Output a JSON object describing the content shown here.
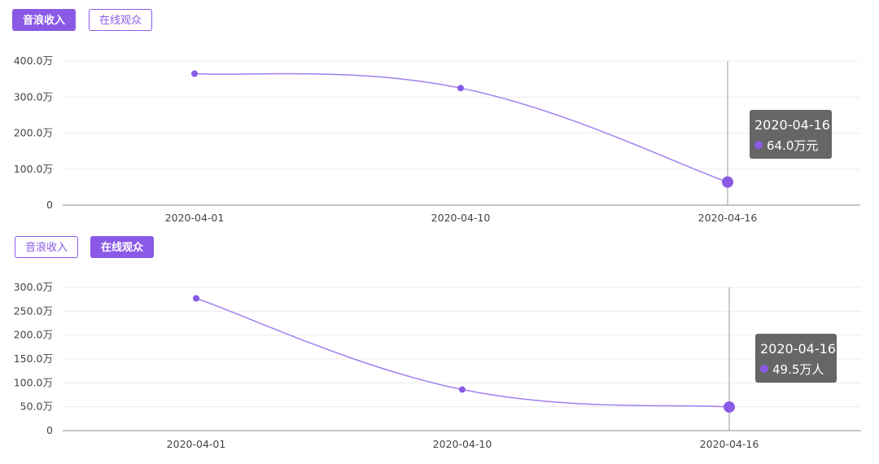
{
  "colors": {
    "accent": "#8a5ae6",
    "line": "#a27ff0",
    "grid": "#ececec",
    "axis": "#888888",
    "tooltip_bg": "#666666",
    "tooltip_text": "#ffffff"
  },
  "panels": [
    {
      "tabs": [
        {
          "label": "音浪收入",
          "active": true
        },
        {
          "label": "在线观众",
          "active": false
        }
      ],
      "tooltip": {
        "date": "2020-04-16",
        "value": "64.0万元"
      }
    },
    {
      "tabs": [
        {
          "label": "音浪收入",
          "active": false
        },
        {
          "label": "在线观众",
          "active": true
        }
      ],
      "tooltip": {
        "date": "2020-04-16",
        "value": "49.5万人"
      }
    }
  ],
  "chart_data": [
    {
      "type": "line",
      "categories": [
        "2020-04-01",
        "2020-04-10",
        "2020-04-16"
      ],
      "series": [
        {
          "values": [
            365,
            325,
            64.0
          ]
        }
      ],
      "y_unit": "万",
      "ylim": [
        0,
        400
      ],
      "yticks": [
        0,
        100,
        200,
        300,
        400
      ],
      "ytick_labels": [
        "0",
        "100.0万",
        "200.0万",
        "300.0万",
        "400.0万"
      ],
      "grid": true,
      "highlight_index": 2,
      "tooltip_unit": "万元"
    },
    {
      "type": "line",
      "categories": [
        "2020-04-01",
        "2020-04-10",
        "2020-04-16"
      ],
      "series": [
        {
          "values": [
            277,
            86,
            49.5
          ]
        }
      ],
      "y_unit": "万",
      "ylim": [
        0,
        300
      ],
      "yticks": [
        0,
        50,
        100,
        150,
        200,
        250,
        300
      ],
      "ytick_labels": [
        "0",
        "50.0万",
        "100.0万",
        "150.0万",
        "200.0万",
        "250.0万",
        "300.0万"
      ],
      "grid": true,
      "highlight_index": 2,
      "tooltip_unit": "万人"
    }
  ]
}
